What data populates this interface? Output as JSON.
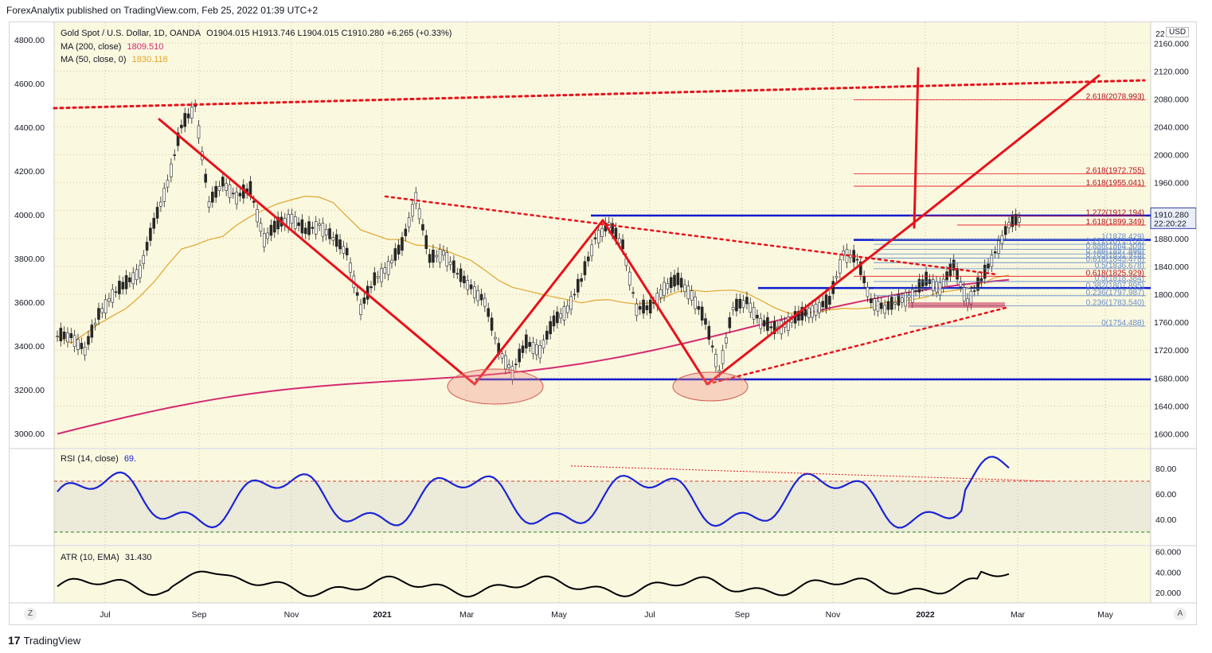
{
  "header": {
    "published": "ForexAnalytix published on TradingView.com, Feb 25, 2022 01:39 UTC+2"
  },
  "legend": {
    "symbol": "Gold Spot / U.S. Dollar, 1D, OANDA",
    "ohlc": "O1904.015  H1913.746  L1904.015  C1910.280  +6.265 (+0.33%)",
    "ma200_label": "MA (200, close)",
    "ma200_value": "1809.510",
    "ma50_label": "MA (50, close, 0)",
    "ma50_value": "1830.118",
    "rsi_label": "RSI (14, close)",
    "rsi_value": "69.",
    "atr_label": "ATR (10, EMA)",
    "atr_value": "31.430"
  },
  "currency_badge": "USD",
  "price_badge": {
    "price": "1910.280",
    "countdown": "22:20:22"
  },
  "colors": {
    "background": "#fbf8e0",
    "candle_up": "#262626",
    "candle_down": "#262626",
    "ma200": "#d42a70",
    "ma50": "#e0a52a",
    "trend": "#e8111a",
    "support": "#0b1bd1",
    "rsi": "#1a24d4",
    "atr": "#000000"
  },
  "left_axis": [
    "4800.00",
    "4600.00",
    "4400.00",
    "4200.00",
    "4000.00",
    "3800.00",
    "3600.00",
    "3400.00",
    "3200.00",
    "3000.00"
  ],
  "right_axis": [
    "2160.000",
    "2120.000",
    "2080.000",
    "2040.000",
    "2000.000",
    "1960.000",
    "1920.000",
    "1880.000",
    "1840.000",
    "1800.000",
    "1760.000",
    "1720.000",
    "1680.000",
    "1640.000",
    "1600.000"
  ],
  "right_axis_top": "22",
  "rsi_axis": [
    "80.00",
    "60.00",
    "40.00"
  ],
  "atr_axis": [
    "60.000",
    "40.000",
    "20.000"
  ],
  "x_axis": [
    "Jul",
    "Sep",
    "Nov",
    "2021",
    "Mar",
    "May",
    "Jul",
    "Sep",
    "Nov",
    "2022",
    "Mar",
    "May"
  ],
  "fib_labels": [
    {
      "text": "2.618(2078.993)"
    },
    {
      "text": "2.618(1972.755)"
    },
    {
      "text": "1.618(1955.041)"
    },
    {
      "text": "1.272(1912.194)"
    },
    {
      "text": "1.618(1899.349)"
    },
    {
      "text": "1(1878.429)"
    },
    {
      "text": "1.272(1871.731)"
    },
    {
      "text": "0.886(1864.309)"
    },
    {
      "text": "0.786(1857.896)"
    },
    {
      "text": "0.705(1851.978)"
    },
    {
      "text": "0.618(1845.478)"
    },
    {
      "text": "0.5(1836.678)"
    },
    {
      "text": "0.618(1825.929)"
    },
    {
      "text": "0.5(1818.384)"
    },
    {
      "text": "0.382(1807.895)"
    },
    {
      "text": "0.236(1797.987)"
    },
    {
      "text": "0.236(1783.540)"
    },
    {
      "text": "0(1754.488)"
    }
  ],
  "footer": {
    "logo": "17",
    "brand": "TradingView"
  },
  "nav": {
    "zoom": "Z",
    "auto": "A"
  },
  "chart_data": {
    "type": "candlestick",
    "title": "Gold Spot / U.S. Dollar, 1D, OANDA",
    "xlabel": "",
    "ylabel": "",
    "ylim": [
      1580,
      2190
    ],
    "x_ticks": [
      "Jul",
      "Sep",
      "Nov",
      "2021",
      "Mar",
      "May",
      "Jul",
      "Sep",
      "Nov",
      "2022",
      "Mar",
      "May"
    ],
    "series": [
      {
        "name": "price",
        "points": [
          [
            "Jun",
            1740
          ],
          [
            "Jun",
            1720
          ],
          [
            "Jul",
            1770
          ],
          [
            "Jul",
            1800
          ],
          [
            "Jul",
            1815
          ],
          [
            "Jul",
            1835
          ],
          [
            "Jul",
            1900
          ],
          [
            "Aug",
            1960
          ],
          [
            "Aug",
            2040
          ],
          [
            "Aug",
            2070
          ],
          [
            "Aug",
            1930
          ],
          [
            "Sep",
            1960
          ],
          [
            "Sep",
            1940
          ],
          [
            "Sep",
            1950
          ],
          [
            "Sep",
            1880
          ],
          [
            "Oct",
            1900
          ],
          [
            "Oct",
            1910
          ],
          [
            "Oct",
            1890
          ],
          [
            "Nov",
            1900
          ],
          [
            "Nov",
            1880
          ],
          [
            "Nov",
            1860
          ],
          [
            "Nov",
            1780
          ],
          [
            "Dec",
            1820
          ],
          [
            "Dec",
            1840
          ],
          [
            "Dec",
            1870
          ],
          [
            "Jan",
            1940
          ],
          [
            "Jan",
            1850
          ],
          [
            "Jan",
            1860
          ],
          [
            "Feb",
            1830
          ],
          [
            "Feb",
            1810
          ],
          [
            "Feb",
            1790
          ],
          [
            "Mar",
            1720
          ],
          [
            "Mar",
            1690
          ],
          [
            "Mar",
            1730
          ],
          [
            "Apr",
            1720
          ],
          [
            "Apr",
            1760
          ],
          [
            "Apr",
            1780
          ],
          [
            "May",
            1820
          ],
          [
            "May",
            1880
          ],
          [
            "May",
            1900
          ],
          [
            "Jun",
            1870
          ],
          [
            "Jun",
            1780
          ],
          [
            "Jun",
            1780
          ],
          [
            "Jul",
            1810
          ],
          [
            "Jul",
            1820
          ],
          [
            "Jul",
            1800
          ],
          [
            "Aug",
            1760
          ],
          [
            "Aug",
            1690
          ],
          [
            "Aug",
            1780
          ],
          [
            "Sep",
            1790
          ],
          [
            "Sep",
            1760
          ],
          [
            "Sep",
            1750
          ],
          [
            "Oct",
            1760
          ],
          [
            "Oct",
            1770
          ],
          [
            "Oct",
            1780
          ],
          [
            "Nov",
            1790
          ],
          [
            "Nov",
            1860
          ],
          [
            "Nov",
            1850
          ],
          [
            "Nov",
            1790
          ],
          [
            "Dec",
            1780
          ],
          [
            "Dec",
            1790
          ],
          [
            "Dec",
            1800
          ],
          [
            "Jan",
            1820
          ],
          [
            "Jan",
            1810
          ],
          [
            "Jan",
            1840
          ],
          [
            "Feb",
            1790
          ],
          [
            "Feb",
            1820
          ],
          [
            "Feb",
            1860
          ],
          [
            "Feb",
            1900
          ],
          [
            "Feb",
            1910
          ]
        ]
      },
      {
        "name": "MA (200, close)",
        "last": 1809.51
      },
      {
        "name": "MA (50, close, 0)",
        "last": 1830.118
      }
    ],
    "levels": [
      {
        "label": "2.618",
        "value": 2078.993
      },
      {
        "label": "2.618",
        "value": 1972.755
      },
      {
        "label": "1.618",
        "value": 1955.041
      },
      {
        "label": "1.272",
        "value": 1912.194
      },
      {
        "label": "1.618",
        "value": 1899.349
      },
      {
        "label": "1",
        "value": 1878.429
      },
      {
        "label": "0",
        "value": 1754.488
      }
    ],
    "support_lines": [
      1913,
      1878,
      1809,
      1678
    ],
    "rsi": {
      "ylim": [
        20,
        95
      ],
      "overbought": 70,
      "oversold": 30,
      "last": 69
    },
    "atr": {
      "ylim": [
        10,
        65
      ],
      "last": 31.43
    },
    "last": 1910.28
  }
}
